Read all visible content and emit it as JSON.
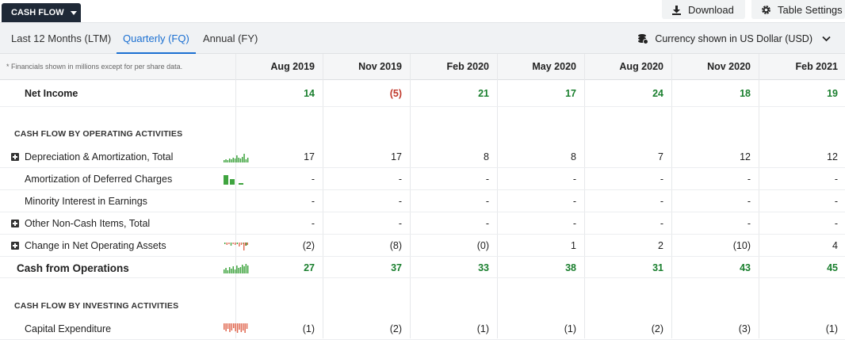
{
  "toolbar": {
    "section_label": "CASH FLOW",
    "download_label": "Download",
    "settings_label": "Table Settings"
  },
  "tabs": [
    {
      "label": "Last 12 Months (LTM)",
      "active": false
    },
    {
      "label": "Quarterly (FQ)",
      "active": true
    },
    {
      "label": "Annual (FY)",
      "active": false
    }
  ],
  "currency_label": "Currency shown in US Dollar (USD)",
  "note": "* Financials shown in millions except for per share data.",
  "periods": [
    "Aug 2019",
    "Nov 2019",
    "Feb 2020",
    "May 2020",
    "Aug 2020",
    "Nov 2020",
    "Feb 2021"
  ],
  "colors": {
    "positive": "#1a7f2e",
    "negative": "#c0392b",
    "accent": "#1a6fd1",
    "spark_green": "#3fa43f",
    "spark_red": "#e0674f"
  },
  "net_income": {
    "label": "Net Income",
    "values": [
      "14",
      "(5)",
      "21",
      "17",
      "24",
      "18",
      "19"
    ]
  },
  "operating_section": "CASH FLOW BY OPERATING ACTIVITIES",
  "operating_rows": [
    {
      "label": "Depreciation & Amortization, Total",
      "expandable": true,
      "spark": "green",
      "values": [
        "17",
        "17",
        "8",
        "8",
        "7",
        "12",
        "12"
      ]
    },
    {
      "label": "Amortization of Deferred Charges",
      "expandable": false,
      "spark": "green-blocks",
      "values": [
        "-",
        "-",
        "-",
        "-",
        "-",
        "-",
        "-"
      ]
    },
    {
      "label": "Minority Interest in Earnings",
      "expandable": false,
      "spark": "none",
      "values": [
        "-",
        "-",
        "-",
        "-",
        "-",
        "-",
        "-"
      ]
    },
    {
      "label": "Other Non-Cash Items, Total",
      "expandable": true,
      "spark": "none",
      "values": [
        "-",
        "-",
        "-",
        "-",
        "-",
        "-",
        "-"
      ]
    },
    {
      "label": "Change in Net Operating Assets",
      "expandable": true,
      "spark": "mixed",
      "values": [
        "(2)",
        "(8)",
        "(0)",
        "1",
        "2",
        "(10)",
        "4"
      ]
    }
  ],
  "cash_from_operations": {
    "label": "Cash from Operations",
    "values": [
      "27",
      "37",
      "33",
      "38",
      "31",
      "43",
      "45"
    ]
  },
  "investing_section": "CASH FLOW BY INVESTING ACTIVITIES",
  "capex": {
    "label": "Capital Expenditure",
    "spark": "red",
    "values": [
      "(1)",
      "(2)",
      "(1)",
      "(1)",
      "(2)",
      "(3)",
      "(1)"
    ]
  }
}
